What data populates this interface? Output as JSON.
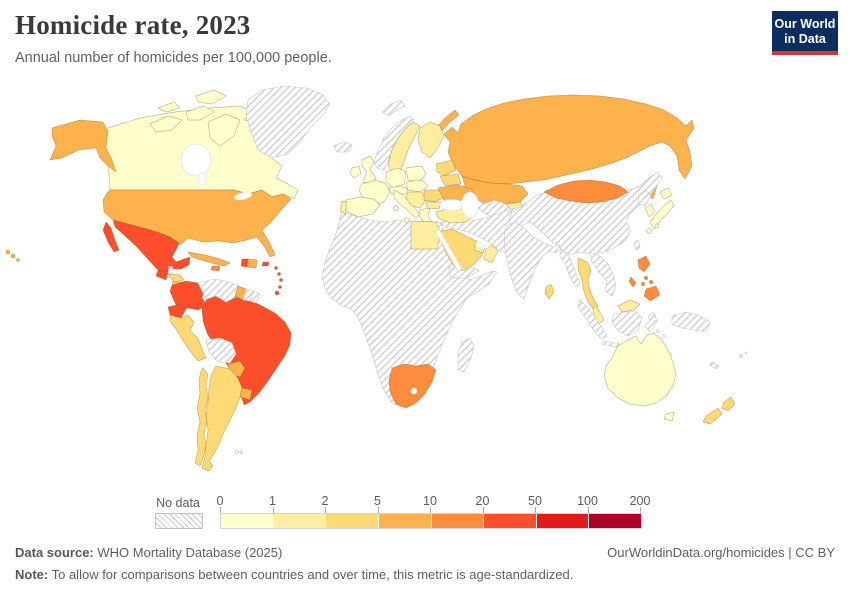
{
  "header": {
    "title": "Homicide rate, 2023",
    "subtitle": "Annual number of homicides per 100,000 people."
  },
  "logo": {
    "line1": "Our World",
    "line2": "in Data",
    "bg_color": "#0d2e5c",
    "accent_color": "#cf3a2e"
  },
  "chart_data": {
    "type": "choropleth-world-map",
    "title": "Homicide rate, 2023",
    "subtitle": "Annual number of homicides per 100,000 people.",
    "unit": "homicides per 100,000 people",
    "legend": {
      "no_data_label": "No data",
      "tick_labels": [
        "0",
        "1",
        "2",
        "5",
        "10",
        "20",
        "50",
        "100",
        "200"
      ],
      "bucket_ranges": [
        "0-1",
        "1-2",
        "2-5",
        "5-10",
        "10-20",
        "20-50",
        "50-100",
        "100-200"
      ],
      "bucket_colors": [
        "#ffffcc",
        "#ffeda0",
        "#fed976",
        "#feb24c",
        "#fd8d3c",
        "#fc4e2a",
        "#e31a1c",
        "#b10026"
      ],
      "no_data_style": "gray-diagonal-hatch"
    },
    "regions": {
      "canada": {
        "label": "Canada",
        "range": "0-1"
      },
      "usa": {
        "label": "United States",
        "range": "5-10"
      },
      "greenland": {
        "label": "Greenland",
        "range": "no-data"
      },
      "mexico": {
        "label": "Mexico",
        "range": "20-50"
      },
      "guatemala": {
        "label": "Guatemala",
        "range": "20-50"
      },
      "belize": {
        "label": "Belize",
        "range": "no-data"
      },
      "honduras": {
        "label": "Honduras",
        "range": "2-5"
      },
      "nicaragua": {
        "label": "Nicaragua",
        "range": "2-5"
      },
      "costa-rica": {
        "label": "Costa Rica",
        "range": "5-10"
      },
      "panama": {
        "label": "Panama",
        "range": "5-10"
      },
      "cuba": {
        "label": "Cuba",
        "range": "5-10"
      },
      "jamaica": {
        "label": "Jamaica",
        "range": "10-20"
      },
      "haiti": {
        "label": "Haiti",
        "range": "20-50"
      },
      "dominican-republic": {
        "label": "Dominican Republic",
        "range": "5-10"
      },
      "puerto-rico": {
        "label": "Puerto Rico",
        "range": "20-50"
      },
      "lesser-antilles": {
        "label": "Lesser Antilles",
        "range": "20-50"
      },
      "trinidad-and-tobago": {
        "label": "Trinidad and Tobago",
        "range": "20-50"
      },
      "colombia": {
        "label": "Colombia",
        "range": "20-50"
      },
      "venezuela": {
        "label": "Venezuela",
        "range": "no-data"
      },
      "guyana": {
        "label": "Guyana",
        "range": "5-10"
      },
      "suriname": {
        "label": "Suriname",
        "range": "no-data"
      },
      "french-guiana": {
        "label": "French Guiana",
        "range": "no-data"
      },
      "ecuador": {
        "label": "Ecuador",
        "range": "20-50"
      },
      "peru": {
        "label": "Peru",
        "range": "2-5"
      },
      "brazil": {
        "label": "Brazil",
        "range": "20-50"
      },
      "bolivia": {
        "label": "Bolivia",
        "range": "no-data"
      },
      "paraguay": {
        "label": "Paraguay",
        "range": "5-10"
      },
      "uruguay": {
        "label": "Uruguay",
        "range": "5-10"
      },
      "chile": {
        "label": "Chile",
        "range": "2-5"
      },
      "argentina": {
        "label": "Argentina",
        "range": "2-5"
      },
      "falkland-islands": {
        "label": "Falkland Islands",
        "range": "no-data"
      },
      "iceland": {
        "label": "Iceland",
        "range": "no-data"
      },
      "norway": {
        "label": "Norway",
        "range": "no-data"
      },
      "sweden": {
        "label": "Sweden",
        "range": "1-2"
      },
      "finland": {
        "label": "Finland",
        "range": "1-2"
      },
      "denmark": {
        "label": "Denmark",
        "range": "1-2"
      },
      "united-kingdom": {
        "label": "United Kingdom",
        "range": "0-1"
      },
      "ireland": {
        "label": "Ireland",
        "range": "0-1"
      },
      "france": {
        "label": "France",
        "range": "0-1"
      },
      "germany": {
        "label": "Germany",
        "range": "0-1"
      },
      "poland": {
        "label": "Poland",
        "range": "0-1"
      },
      "spain": {
        "label": "Spain",
        "range": "0-1"
      },
      "portugal": {
        "label": "Portugal",
        "range": "1-2"
      },
      "italy": {
        "label": "Italy",
        "range": "0-1"
      },
      "switzerland-austria": {
        "label": "Switzerland and Austria",
        "range": "0-1"
      },
      "czech-slovakia-hungary": {
        "label": "Czechia, Slovakia and Hungary",
        "range": "0-1"
      },
      "balkans": {
        "label": "Western Balkans",
        "range": "1-2"
      },
      "greece": {
        "label": "Greece",
        "range": "0-1"
      },
      "romania": {
        "label": "Romania",
        "range": "2-5"
      },
      "bulgaria": {
        "label": "Bulgaria",
        "range": "1-2"
      },
      "baltics": {
        "label": "Baltic states",
        "range": "2-5"
      },
      "belarus": {
        "label": "Belarus",
        "range": "2-5"
      },
      "ukraine": {
        "label": "Ukraine",
        "range": "5-10"
      },
      "turkey": {
        "label": "Turkey",
        "range": "1-2"
      },
      "caucasus": {
        "label": "Caucasus",
        "range": "1-2"
      },
      "russia": {
        "label": "Russia",
        "range": "5-10"
      },
      "svalbard": {
        "label": "Svalbard",
        "range": "no-data"
      },
      "kazakhstan": {
        "label": "Kazakhstan",
        "range": "5-10"
      },
      "central-asia": {
        "label": "Central Asia",
        "range": "no-data"
      },
      "kyrgyzstan": {
        "label": "Kyrgyzstan",
        "range": "1-2"
      },
      "middle-east": {
        "label": "Middle East",
        "range": "no-data"
      },
      "levant": {
        "label": "Levant",
        "range": "no-data"
      },
      "saudi-arabia": {
        "label": "Saudi Arabia",
        "range": "2-5"
      },
      "yemen": {
        "label": "Yemen",
        "range": "no-data"
      },
      "oman": {
        "label": "Oman",
        "range": "1-2"
      },
      "uae-qatar": {
        "label": "United Arab Emirates and Qatar",
        "range": "1-2"
      },
      "egypt": {
        "label": "Egypt",
        "range": "1-2"
      },
      "africa": {
        "label": "Africa (most countries)",
        "range": "no-data"
      },
      "madagascar": {
        "label": "Madagascar",
        "range": "no-data"
      },
      "south-africa": {
        "label": "South Africa",
        "range": "10-20"
      },
      "china": {
        "label": "China",
        "range": "no-data"
      },
      "mongolia": {
        "label": "Mongolia",
        "range": "10-20"
      },
      "north-korea": {
        "label": "North Korea",
        "range": "no-data"
      },
      "south-korea": {
        "label": "South Korea",
        "range": "0-1"
      },
      "japan": {
        "label": "Japan",
        "range": "0-1"
      },
      "taiwan": {
        "label": "Taiwan",
        "range": "no-data"
      },
      "india": {
        "label": "India",
        "range": "no-data"
      },
      "sri-lanka": {
        "label": "Sri Lanka",
        "range": "2-5"
      },
      "myanmar": {
        "label": "Myanmar",
        "range": "no-data"
      },
      "thailand": {
        "label": "Thailand",
        "range": "2-5"
      },
      "indochina": {
        "label": "Laos, Vietnam and Cambodia",
        "range": "no-data"
      },
      "malaysia": {
        "label": "Malaysia",
        "range": "1-2"
      },
      "indonesia": {
        "label": "Indonesia",
        "range": "no-data"
      },
      "papua-new-guinea": {
        "label": "Papua New Guinea",
        "range": "no-data"
      },
      "philippines": {
        "label": "Philippines",
        "range": "10-20"
      },
      "australia": {
        "label": "Australia",
        "range": "0-1"
      },
      "new-zealand": {
        "label": "New Zealand",
        "range": "2-5"
      },
      "new-caledonia": {
        "label": "New Caledonia",
        "range": "no-data"
      },
      "fiji": {
        "label": "Fiji",
        "range": "no-data"
      }
    }
  },
  "footer": {
    "data_source_label": "Data source:",
    "data_source_value": "WHO Mortality Database (2025)",
    "credit": "OurWorldinData.org/homicides | CC BY",
    "note_label": "Note:",
    "note_value": "To allow for comparisons between countries and over time, this metric is age-standardized."
  }
}
